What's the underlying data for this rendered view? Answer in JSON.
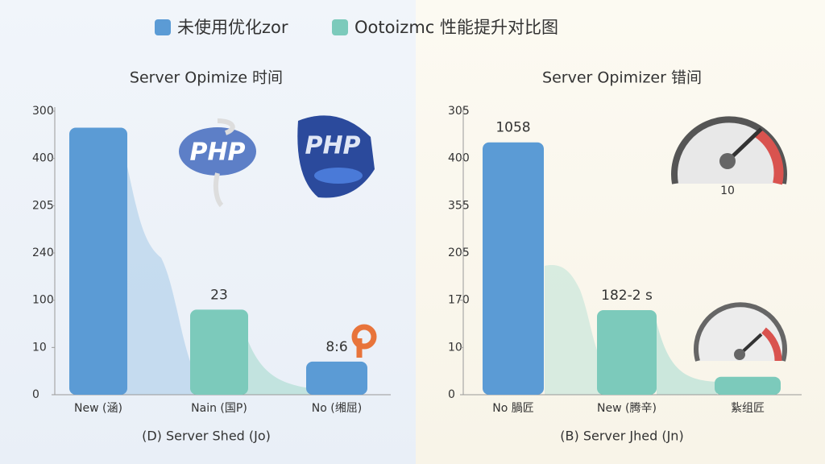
{
  "legend": [
    {
      "name": "未使用优化zor",
      "color": "#5b9bd5"
    },
    {
      "name": "Ootoizmc 性能提升对比图",
      "color": "#7ccabb"
    }
  ],
  "chart_data": [
    {
      "type": "bar",
      "title": "Server Opimize 时间",
      "categories": [
        "New (涵)",
        "Nain (国P)",
        "No (缃屈)"
      ],
      "values": [
        5.65,
        1.8,
        0.7
      ],
      "value_labels": [
        "",
        "23",
        "8:6"
      ],
      "colors": [
        "#5b9bd5",
        "#7ccabb",
        "#5b9bd5"
      ],
      "ylim": [
        0,
        6
      ],
      "yticks": [
        {
          "value": 0,
          "label": "0"
        },
        {
          "value": 1,
          "label": "10"
        },
        {
          "value": 2,
          "label": "100"
        },
        {
          "value": 3,
          "label": "240"
        },
        {
          "value": 4,
          "label": "205"
        },
        {
          "value": 5,
          "label": "400"
        },
        {
          "value": 6,
          "label": "300"
        }
      ],
      "xlabel": "(D) Server Shed (Jo)"
    },
    {
      "type": "bar",
      "title": "Server Opimizer 错间",
      "categories": [
        "No 腡匠",
        "New (腾辛)",
        "紥组匠"
      ],
      "values": [
        5.34,
        1.79,
        0.38
      ],
      "value_labels": [
        "1058",
        "182-2 s",
        null
      ],
      "colors": [
        "#5b9bd5",
        "#7ccabb",
        "#7ccabb"
      ],
      "ylim": [
        0,
        6
      ],
      "yticks": [
        {
          "value": 0,
          "label": "0"
        },
        {
          "value": 1,
          "label": "10"
        },
        {
          "value": 2,
          "label": "170"
        },
        {
          "value": 3,
          "label": "205"
        },
        {
          "value": 4,
          "label": "355"
        },
        {
          "value": 5,
          "label": "400"
        },
        {
          "value": 6,
          "label": "305"
        }
      ],
      "xlabel": "(B) Server Jhed (Jn)",
      "annotation": "10"
    }
  ]
}
